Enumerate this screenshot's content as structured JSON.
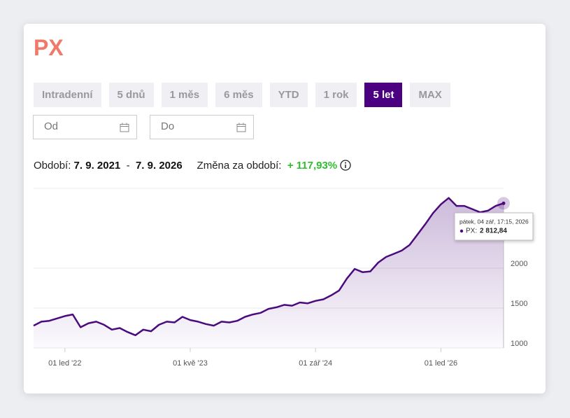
{
  "header": {
    "title": "PX"
  },
  "ranges": {
    "buttons": [
      "Intradenní",
      "5 dnů",
      "1 měs",
      "6 měs",
      "YTD",
      "1 rok",
      "5 let",
      "MAX"
    ],
    "selected": 6
  },
  "date_inputs": [
    "Od",
    "Do"
  ],
  "period": {
    "label": "Období:",
    "from": "7. 9. 2021",
    "separator": "-",
    "to": "7. 9. 2026",
    "change_label": "Změna za období:",
    "change": "+ 117,93%"
  },
  "chart_data": {
    "type": "line",
    "color": "#4b0a7d",
    "grid": true,
    "x": [
      "2021-09",
      "2021-10",
      "2021-11",
      "2021-12",
      "2022-01",
      "2022-02",
      "2022-03",
      "2022-04",
      "2022-05",
      "2022-06",
      "2022-07",
      "2022-08",
      "2022-09",
      "2022-10",
      "2022-11",
      "2022-12",
      "2023-01",
      "2023-02",
      "2023-03",
      "2023-04",
      "2023-05",
      "2023-06",
      "2023-07",
      "2023-08",
      "2023-09",
      "2023-10",
      "2023-11",
      "2023-12",
      "2024-01",
      "2024-02",
      "2024-03",
      "2024-04",
      "2024-05",
      "2024-06",
      "2024-07",
      "2024-08",
      "2024-09",
      "2024-10",
      "2024-11",
      "2024-12",
      "2025-01",
      "2025-02",
      "2025-03",
      "2025-04",
      "2025-05",
      "2025-06",
      "2025-07",
      "2025-08",
      "2025-09",
      "2025-10",
      "2025-11",
      "2025-12",
      "2026-01",
      "2026-02",
      "2026-03",
      "2026-04",
      "2026-05",
      "2026-06",
      "2026-07",
      "2026-08",
      "2026-09"
    ],
    "series": [
      {
        "name": "PX",
        "color": "#4b0a7d",
        "values": [
          1280,
          1330,
          1340,
          1370,
          1400,
          1420,
          1260,
          1310,
          1330,
          1290,
          1230,
          1250,
          1200,
          1160,
          1230,
          1210,
          1290,
          1330,
          1320,
          1390,
          1350,
          1330,
          1300,
          1280,
          1330,
          1320,
          1340,
          1390,
          1420,
          1440,
          1490,
          1510,
          1540,
          1530,
          1570,
          1560,
          1590,
          1610,
          1660,
          1720,
          1870,
          1990,
          1950,
          1960,
          2070,
          2140,
          2180,
          2220,
          2290,
          2420,
          2550,
          2690,
          2800,
          2880,
          2780,
          2780,
          2740,
          2700,
          2720,
          2780,
          2812.84
        ]
      }
    ],
    "xlim": [
      "2021-09",
      "2026-09"
    ],
    "xticks": [
      {
        "value": "2022-01",
        "label": "01 led '22"
      },
      {
        "value": "2023-05",
        "label": "01 kvě '23"
      },
      {
        "value": "2024-09",
        "label": "01 zář '24"
      },
      {
        "value": "2026-01",
        "label": "01 led '26"
      }
    ],
    "ylim": [
      1000,
      3000
    ],
    "yticks": [
      1000,
      1500,
      2000
    ],
    "tooltip": {
      "date": "pátek, 04 zář, 17:15, 2026",
      "label": "PX:",
      "value_label": "2 812,84"
    }
  }
}
